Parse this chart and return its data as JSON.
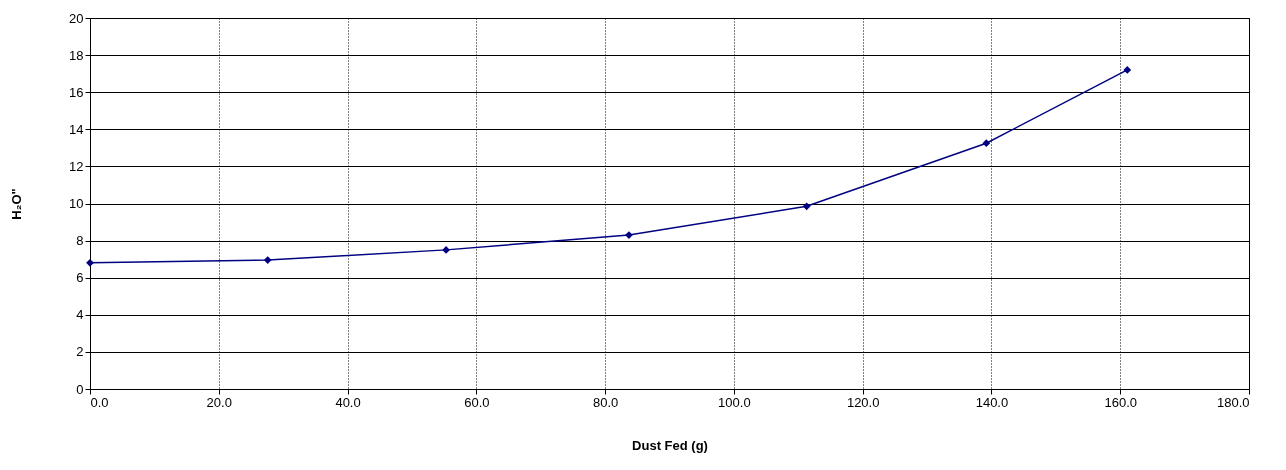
{
  "chart_data": {
    "type": "line",
    "xlabel": "Dust Fed (g)",
    "ylabel": "H₂O\"",
    "x": [
      0,
      27.6,
      55.3,
      83.7,
      111.3,
      139.2,
      161.1
    ],
    "series": [
      {
        "color": "#000080",
        "values": [
          6.8,
          6.95,
          7.5,
          8.3,
          9.85,
          13.25,
          17.2
        ]
      }
    ],
    "xlim": [
      0,
      180
    ],
    "xticks": [
      {
        "value": 0,
        "label": "0.0"
      },
      {
        "value": 20,
        "label": "20.0"
      },
      {
        "value": 40,
        "label": "40.0"
      },
      {
        "value": 60,
        "label": "60.0"
      },
      {
        "value": 80,
        "label": "80.0"
      },
      {
        "value": 100,
        "label": "100.0"
      },
      {
        "value": 120,
        "label": "120.0"
      },
      {
        "value": 140,
        "label": "140.0"
      },
      {
        "value": 160,
        "label": "160.0"
      },
      {
        "value": 180,
        "label": "180.0"
      }
    ],
    "ylim": [
      0,
      20
    ],
    "yticks": [
      0,
      2,
      4,
      6,
      8,
      10,
      12,
      14,
      16,
      18,
      20
    ],
    "grid": true,
    "marker": "diamond",
    "line_style": "solid",
    "legend": false
  }
}
